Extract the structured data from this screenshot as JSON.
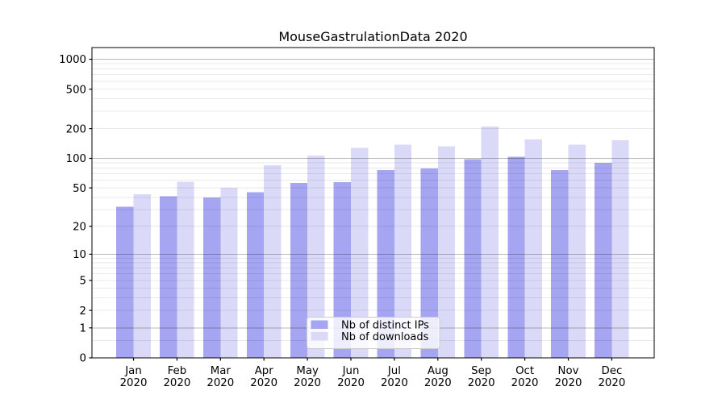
{
  "chart_data": {
    "type": "bar",
    "title": "MouseGastrulationData 2020",
    "categories": [
      "Jan",
      "Feb",
      "Mar",
      "Apr",
      "May",
      "Jun",
      "Jul",
      "Aug",
      "Sep",
      "Oct",
      "Nov",
      "Dec"
    ],
    "x_year_label": "2020",
    "series": [
      {
        "name": "Nb of distinct IPs",
        "color": "#a5a5f1",
        "values": [
          32,
          41,
          40,
          45,
          56,
          57,
          76,
          79,
          98,
          104,
          76,
          90
        ]
      },
      {
        "name": "Nb of downloads",
        "color": "#dadaf8",
        "values": [
          43,
          58,
          50,
          85,
          107,
          128,
          138,
          132,
          209,
          156,
          138,
          152
        ]
      }
    ],
    "yscale": "log10(1+x)",
    "y_ticks": [
      0,
      1,
      2,
      5,
      10,
      20,
      50,
      100,
      200,
      500,
      1000
    ],
    "y_major_gridlines": [
      1,
      10,
      100,
      1000
    ],
    "y_minor_gridlines": [
      0.5,
      2,
      3,
      4,
      5,
      6,
      7,
      8,
      9,
      20,
      30,
      40,
      50,
      60,
      70,
      80,
      90,
      200,
      300,
      400,
      500,
      600,
      700,
      800,
      900
    ],
    "ylim": [
      0,
      1314
    ],
    "grid": "on, drawn over bars",
    "legend_position": "lower center",
    "legend_entries": [
      "Nb of distinct IPs",
      "Nb of downloads"
    ],
    "colors": {
      "axis": "#000000",
      "minor_grid": "rgba(0,0,0,0.085)",
      "major_grid": "rgba(0,0,0,0.27)",
      "legend_border": "#cccccc",
      "legend_bg": "rgba(255,255,255,0.8)"
    }
  }
}
